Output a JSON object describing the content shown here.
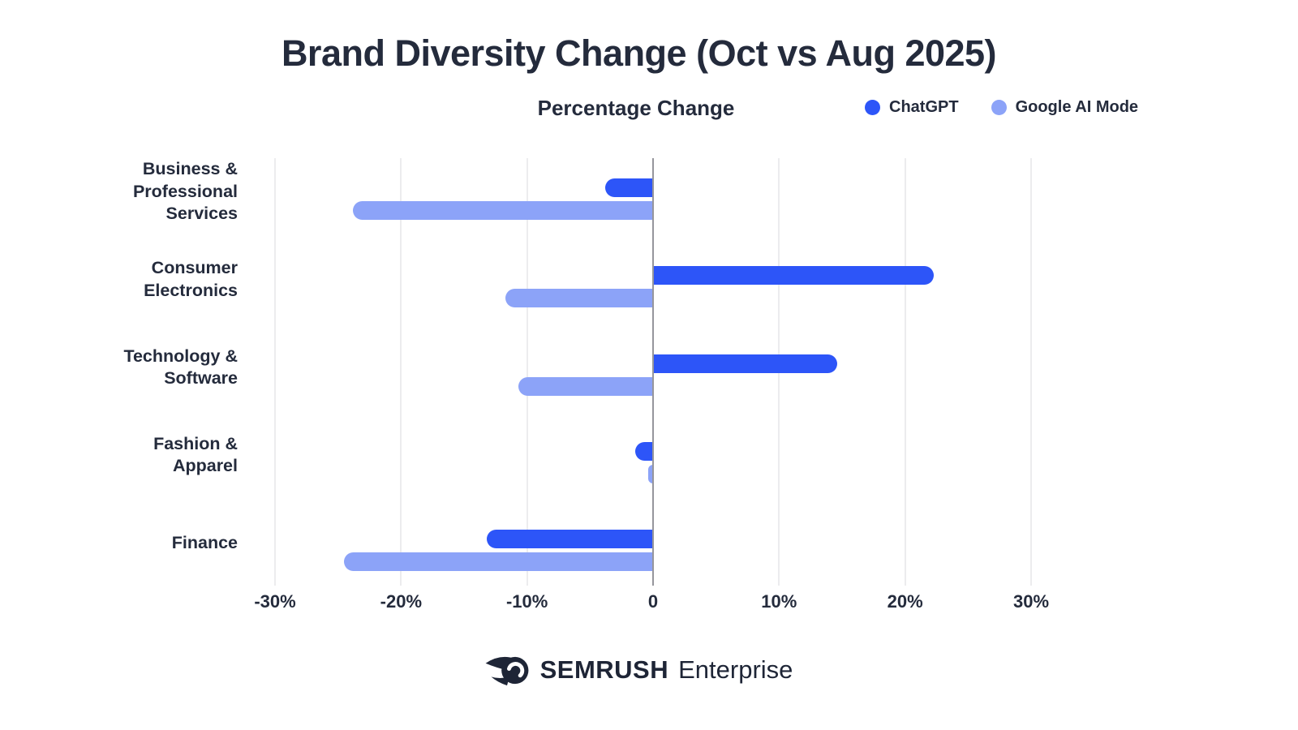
{
  "chart_data": {
    "type": "bar",
    "orientation": "horizontal",
    "title": "Brand Diversity Change (Oct vs Aug 2025)",
    "xlabel": "Percentage Change",
    "categories": [
      "Business & Professional Services",
      "Consumer Electronics",
      "Technology & Software",
      "Fashion & Apparel",
      "Finance"
    ],
    "category_label_lines": [
      [
        "Business &",
        "Professional",
        "Services"
      ],
      [
        "Consumer",
        "Electronics"
      ],
      [
        "Technology &",
        "Software"
      ],
      [
        "Fashion  &",
        "Apparel"
      ],
      [
        "Finance"
      ]
    ],
    "series": [
      {
        "name": "ChatGPT",
        "color": "#2D55F8",
        "values": [
          -3.8,
          22.3,
          14.6,
          -1.4,
          -13.2
        ]
      },
      {
        "name": "Google AI Mode",
        "color": "#8CA3F8",
        "values": [
          -23.8,
          -11.7,
          -10.7,
          -0.4,
          -24.5
        ]
      }
    ],
    "xlim": [
      -30,
      30
    ],
    "xtick_values": [
      -30,
      -20,
      -10,
      0,
      10,
      20,
      30
    ],
    "xtick_labels": [
      "-30%",
      "-20%",
      "-10%",
      "0",
      "10%",
      "20%",
      "30%"
    ],
    "grid": true,
    "legend_position": "top-right",
    "gridline_color": "#ECECEE",
    "axis_line_color": "#96969C",
    "text_color": "#242B3C"
  },
  "footer": {
    "brand": "SEMRUSH",
    "suffix": "Enterprise"
  },
  "icons": {
    "legend_dot": "filled-circle",
    "brand_logo": "semrush-ball-flame"
  }
}
